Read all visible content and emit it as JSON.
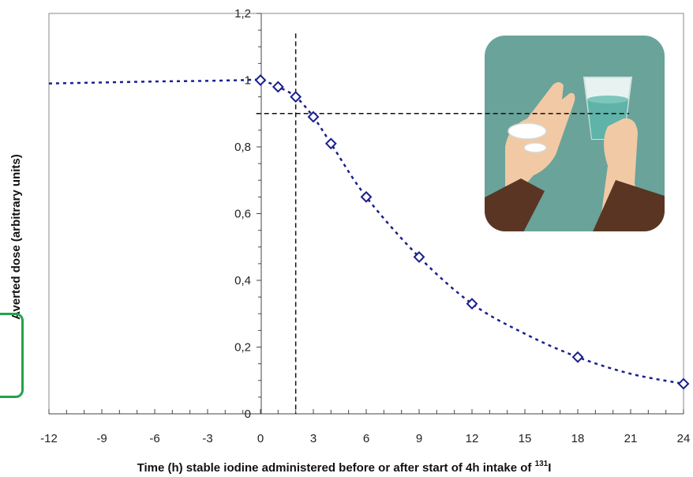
{
  "chart_data": {
    "type": "line",
    "title": "",
    "xlabel": "Time (h) stable iodine administered before or after start of 4h intake of",
    "xlabel_superscript": "131",
    "xlabel_suffix": "I",
    "ylabel": "Averted dose (arbitrary units)",
    "xlim": [
      -12,
      24
    ],
    "ylim": [
      0,
      1.2
    ],
    "x_ticks": [
      "-12",
      "-9",
      "-6",
      "-3",
      "0",
      "3",
      "6",
      "9",
      "12",
      "15",
      "18",
      "21",
      "24"
    ],
    "y_ticks": [
      "0",
      "0,2",
      "0,4",
      "0,6",
      "0,8",
      "1",
      "1,2"
    ],
    "grid": false,
    "legend": "none",
    "series": [
      {
        "marker": "diamond-open",
        "color": "#1a1f8c",
        "x": [
          0,
          1,
          2,
          3,
          4,
          6,
          9,
          12,
          18,
          24
        ],
        "y": [
          1.0,
          0.98,
          0.95,
          0.89,
          0.81,
          0.65,
          0.47,
          0.33,
          0.17,
          0.09
        ]
      }
    ],
    "fit_line": {
      "style": "dotted",
      "color": "#1a1f8c",
      "x": [
        -12,
        -9,
        -6,
        -3,
        -1,
        0,
        1,
        2,
        3,
        4,
        6,
        9,
        12,
        15,
        18,
        21,
        24
      ],
      "y": [
        0.99,
        0.993,
        0.996,
        0.998,
        1.0,
        1.0,
        0.98,
        0.95,
        0.89,
        0.81,
        0.65,
        0.47,
        0.33,
        0.24,
        0.17,
        0.12,
        0.09
      ]
    },
    "reference_lines": {
      "vertical_x": 2,
      "horizontal_y": 0.9,
      "color": "#111111"
    },
    "inset_image": "hand-with-pills-and-water-glass"
  }
}
